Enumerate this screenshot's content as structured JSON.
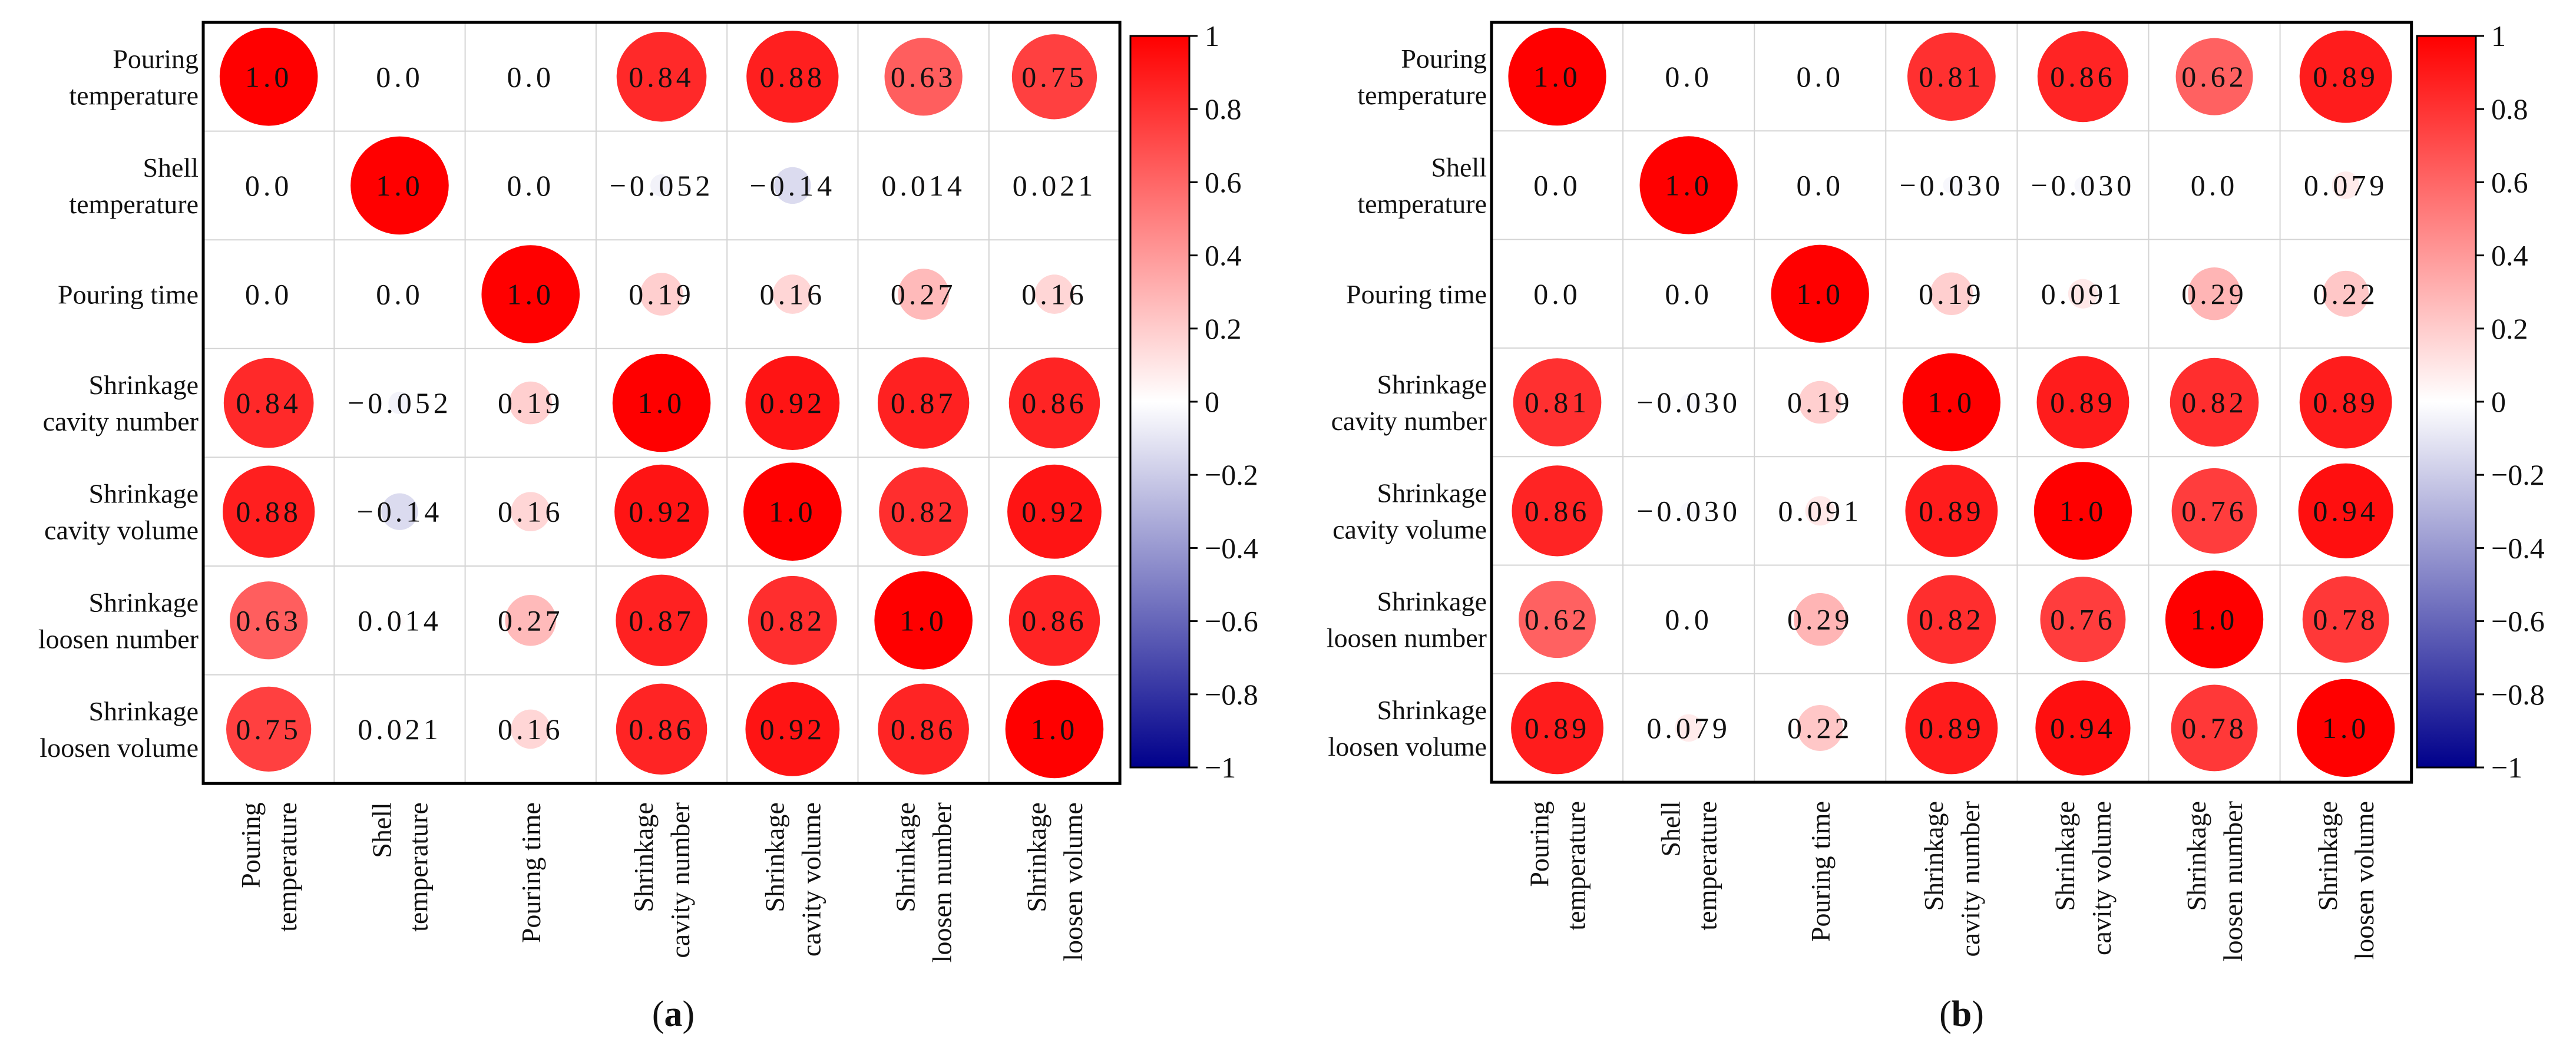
{
  "chart_data": [
    {
      "type": "heatmap",
      "panel_label": "(a)",
      "variables": [
        [
          "Pouring",
          "temperature"
        ],
        [
          "Shell",
          "temperature"
        ],
        [
          "Pouring time"
        ],
        [
          "Shrinkage",
          "cavity number"
        ],
        [
          "Shrinkage",
          "cavity volume"
        ],
        [
          "Shrinkage",
          "loosen number"
        ],
        [
          "Shrinkage",
          "loosen volume"
        ]
      ],
      "values": [
        [
          1.0,
          0.0,
          0.0,
          0.84,
          0.88,
          0.63,
          0.75
        ],
        [
          0.0,
          1.0,
          0.0,
          -0.052,
          -0.14,
          0.014,
          0.021
        ],
        [
          0.0,
          0.0,
          1.0,
          0.19,
          0.16,
          0.27,
          0.16
        ],
        [
          0.84,
          -0.052,
          0.19,
          1.0,
          0.92,
          0.87,
          0.86
        ],
        [
          0.88,
          -0.14,
          0.16,
          0.92,
          1.0,
          0.82,
          0.92
        ],
        [
          0.63,
          0.014,
          0.27,
          0.87,
          0.82,
          1.0,
          0.86
        ],
        [
          0.75,
          0.021,
          0.16,
          0.86,
          0.92,
          0.86,
          1.0
        ]
      ],
      "labels": [
        [
          "1.0",
          "0.0",
          "0.0",
          "0.84",
          "0.88",
          "0.63",
          "0.75"
        ],
        [
          "0.0",
          "1.0",
          "0.0",
          "−0.052",
          "−0.14",
          "0.014",
          "0.021"
        ],
        [
          "0.0",
          "0.0",
          "1.0",
          "0.19",
          "0.16",
          "0.27",
          "0.16"
        ],
        [
          "0.84",
          "−0.052",
          "0.19",
          "1.0",
          "0.92",
          "0.87",
          "0.86"
        ],
        [
          "0.88",
          "−0.14",
          "0.16",
          "0.92",
          "1.0",
          "0.82",
          "0.92"
        ],
        [
          "0.63",
          "0.014",
          "0.27",
          "0.87",
          "0.82",
          "1.0",
          "0.86"
        ],
        [
          "0.75",
          "0.021",
          "0.16",
          "0.86",
          "0.92",
          "0.86",
          "1.0"
        ]
      ],
      "colorbar": {
        "range": [
          -1,
          1
        ],
        "ticks": [
          1,
          0.8,
          0.6,
          0.4,
          0.2,
          0,
          -0.2,
          -0.4,
          -0.6,
          -0.8,
          -1
        ],
        "tick_labels": [
          "1",
          "0.8",
          "0.6",
          "0.4",
          "0.2",
          "0",
          "−0.2",
          "−0.4",
          "−0.6",
          "−0.8",
          "−1"
        ],
        "colors": {
          "high": "#ff0000",
          "mid": "#ffffff",
          "low": "#00008b"
        }
      }
    },
    {
      "type": "heatmap",
      "panel_label": "(b)",
      "variables": [
        [
          "Pouring",
          "temperature"
        ],
        [
          "Shell",
          "temperature"
        ],
        [
          "Pouring time"
        ],
        [
          "Shrinkage",
          "cavity number"
        ],
        [
          "Shrinkage",
          "cavity volume"
        ],
        [
          "Shrinkage",
          "loosen number"
        ],
        [
          "Shrinkage",
          "loosen volume"
        ]
      ],
      "values": [
        [
          1.0,
          0.0,
          0.0,
          0.81,
          0.86,
          0.62,
          0.89
        ],
        [
          0.0,
          1.0,
          0.0,
          -0.03,
          -0.03,
          0.0,
          0.079
        ],
        [
          0.0,
          0.0,
          1.0,
          0.19,
          0.091,
          0.29,
          0.22
        ],
        [
          0.81,
          -0.03,
          0.19,
          1.0,
          0.89,
          0.82,
          0.89
        ],
        [
          0.86,
          -0.03,
          0.091,
          0.89,
          1.0,
          0.76,
          0.94
        ],
        [
          0.62,
          0.0,
          0.29,
          0.82,
          0.76,
          1.0,
          0.78
        ],
        [
          0.89,
          0.079,
          0.22,
          0.89,
          0.94,
          0.78,
          1.0
        ]
      ],
      "labels": [
        [
          "1.0",
          "0.0",
          "0.0",
          "0.81",
          "0.86",
          "0.62",
          "0.89"
        ],
        [
          "0.0",
          "1.0",
          "0.0",
          "−0.030",
          "−0.030",
          "0.0",
          "0.079"
        ],
        [
          "0.0",
          "0.0",
          "1.0",
          "0.19",
          "0.091",
          "0.29",
          "0.22"
        ],
        [
          "0.81",
          "−0.030",
          "0.19",
          "1.0",
          "0.89",
          "0.82",
          "0.89"
        ],
        [
          "0.86",
          "−0.030",
          "0.091",
          "0.89",
          "1.0",
          "0.76",
          "0.94"
        ],
        [
          "0.62",
          "0.0",
          "0.29",
          "0.82",
          "0.76",
          "1.0",
          "0.78"
        ],
        [
          "0.89",
          "0.079",
          "0.22",
          "0.89",
          "0.94",
          "0.78",
          "1.0"
        ]
      ],
      "colorbar": {
        "range": [
          -1,
          1
        ],
        "ticks": [
          1,
          0.8,
          0.6,
          0.4,
          0.2,
          0,
          -0.2,
          -0.4,
          -0.6,
          -0.8,
          -1
        ],
        "tick_labels": [
          "1",
          "0.8",
          "0.6",
          "0.4",
          "0.2",
          "0",
          "−0.2",
          "−0.4",
          "−0.6",
          "−0.8",
          "−1"
        ],
        "colors": {
          "high": "#ff0000",
          "mid": "#ffffff",
          "low": "#00008b"
        }
      }
    }
  ]
}
